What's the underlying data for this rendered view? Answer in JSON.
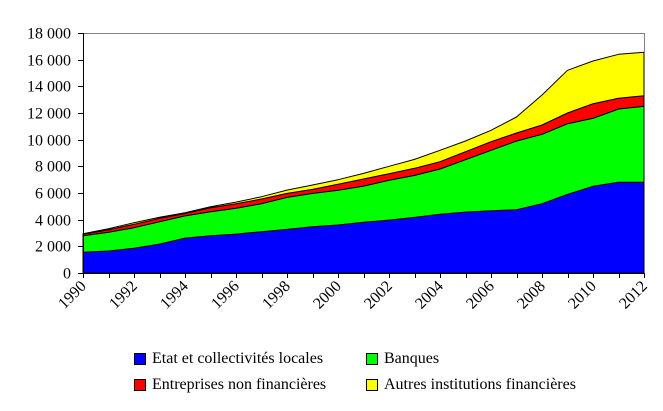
{
  "chart_data": {
    "type": "area",
    "stacked": true,
    "title": "",
    "xlabel": "",
    "ylabel": "",
    "x": [
      1990,
      1991,
      1992,
      1993,
      1994,
      1995,
      1996,
      1997,
      1998,
      1999,
      2000,
      2001,
      2002,
      2003,
      2004,
      2005,
      2006,
      2007,
      2008,
      2009,
      2010,
      2011,
      2012
    ],
    "xlim": [
      1990,
      2012
    ],
    "ylim": [
      0,
      18000
    ],
    "y_ticks": [
      0,
      2000,
      4000,
      6000,
      8000,
      10000,
      12000,
      14000,
      16000,
      18000
    ],
    "y_tick_labels": [
      "0",
      "2 000",
      "4 000",
      "6 000",
      "8 000",
      "10 000",
      "12 000",
      "14 000",
      "16 000",
      "18 000"
    ],
    "x_tick_labels": [
      "1990",
      "1992",
      "1994",
      "1996",
      "1998",
      "2000",
      "2002",
      "2004",
      "2006",
      "2008",
      "2010",
      "2012"
    ],
    "grid": false,
    "legend_position": "bottom",
    "series": [
      {
        "name": "Etat et collectivités locales",
        "color": "#0000ff",
        "values": [
          1550,
          1650,
          1850,
          2170,
          2620,
          2800,
          2920,
          3100,
          3270,
          3470,
          3600,
          3800,
          3970,
          4170,
          4400,
          4570,
          4670,
          4750,
          5200,
          5900,
          6500,
          6800,
          6800
        ]
      },
      {
        "name": "Banques",
        "color": "#00ff00",
        "values": [
          1250,
          1400,
          1550,
          1680,
          1660,
          1800,
          1930,
          2100,
          2400,
          2500,
          2600,
          2720,
          2980,
          3150,
          3400,
          3930,
          4530,
          5150,
          5200,
          5300,
          5100,
          5500,
          5700
        ]
      },
      {
        "name": "Entreprises non financières",
        "color": "#ff0000",
        "values": [
          100,
          200,
          250,
          250,
          190,
          300,
          350,
          350,
          300,
          300,
          450,
          530,
          500,
          530,
          550,
          600,
          650,
          600,
          700,
          800,
          1100,
          800,
          800
        ]
      },
      {
        "name": "Autres institutions financières",
        "color": "#ffff00",
        "values": [
          50,
          70,
          120,
          80,
          50,
          70,
          120,
          170,
          250,
          330,
          350,
          420,
          550,
          670,
          850,
          800,
          850,
          1200,
          2250,
          3200,
          3200,
          3300,
          3250
        ]
      }
    ]
  },
  "legend": {
    "items": [
      {
        "label": "Etat et collectivités locales",
        "color": "#0000ff"
      },
      {
        "label": "Banques",
        "color": "#00ff00"
      },
      {
        "label": "Entreprises non financières",
        "color": "#ff0000"
      },
      {
        "label": "Autres institutions financières",
        "color": "#ffff00"
      }
    ]
  }
}
